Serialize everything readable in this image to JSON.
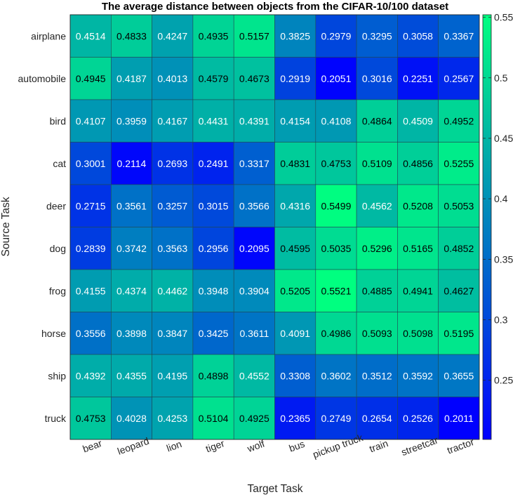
{
  "chart_data": {
    "type": "heatmap",
    "title": "The average distance between objects from the CIFAR-10/100 dataset",
    "xlabel": "Target Task",
    "ylabel": "Source Task",
    "rows": [
      "airplane",
      "automobile",
      "bird",
      "cat",
      "deer",
      "dog",
      "frog",
      "horse",
      "ship",
      "truck"
    ],
    "columns": [
      "bear",
      "leopard",
      "lion",
      "tiger",
      "wolf",
      "bus",
      "pickup truck",
      "train",
      "streetcar",
      "tractor"
    ],
    "values": [
      [
        "0.4514",
        "0.4833",
        "0.4247",
        "0.4935",
        "0.5157",
        "0.3825",
        "0.2979",
        "0.3295",
        "0.3058",
        "0.3367"
      ],
      [
        "0.4945",
        "0.4187",
        "0.4013",
        "0.4579",
        "0.4673",
        "0.2919",
        "0.2051",
        "0.3016",
        "0.2251",
        "0.2567"
      ],
      [
        "0.4107",
        "0.3959",
        "0.4167",
        "0.4431",
        "0.4391",
        "0.4154",
        "0.4108",
        "0.4864",
        "0.4509",
        "0.4952"
      ],
      [
        "0.3001",
        "0.2114",
        "0.2693",
        "0.2491",
        "0.3317",
        "0.4831",
        "0.4753",
        "0.5109",
        "0.4856",
        "0.5255"
      ],
      [
        "0.2715",
        "0.3561",
        "0.3257",
        "0.3015",
        "0.3566",
        "0.4316",
        "0.5499",
        "0.4562",
        "0.5208",
        "0.5053"
      ],
      [
        "0.2839",
        "0.3742",
        "0.3563",
        "0.2956",
        "0.2095",
        "0.4595",
        "0.5035",
        "0.5296",
        "0.5165",
        "0.4852"
      ],
      [
        "0.4155",
        "0.4374",
        "0.4462",
        "0.3948",
        "0.3904",
        "0.5205",
        "0.5521",
        "0.4885",
        "0.4941",
        "0.4627"
      ],
      [
        "0.3556",
        "0.3898",
        "0.3847",
        "0.3425",
        "0.3611",
        "0.4091",
        "0.4986",
        "0.5093",
        "0.5098",
        "0.5195"
      ],
      [
        "0.4392",
        "0.4355",
        "0.4195",
        "0.4898",
        "0.4552",
        "0.3308",
        "0.3602",
        "0.3512",
        "0.3592",
        "0.3655"
      ],
      [
        "0.4753",
        "0.4028",
        "0.4253",
        "0.5104",
        "0.4925",
        "0.2365",
        "0.2749",
        "0.2654",
        "0.2526",
        "0.2011"
      ]
    ],
    "colorbar": {
      "min": 0.2011,
      "max": 0.5521,
      "ticks": [
        "0.25",
        "0.3",
        "0.35",
        "0.4",
        "0.45",
        "0.5",
        "0.55"
      ],
      "colors": [
        "#0000ff",
        "#00ff80"
      ]
    },
    "text_colors": {
      "light": "#ffffff",
      "dark": "#000000"
    },
    "dark_text_threshold": 0.4578
  }
}
